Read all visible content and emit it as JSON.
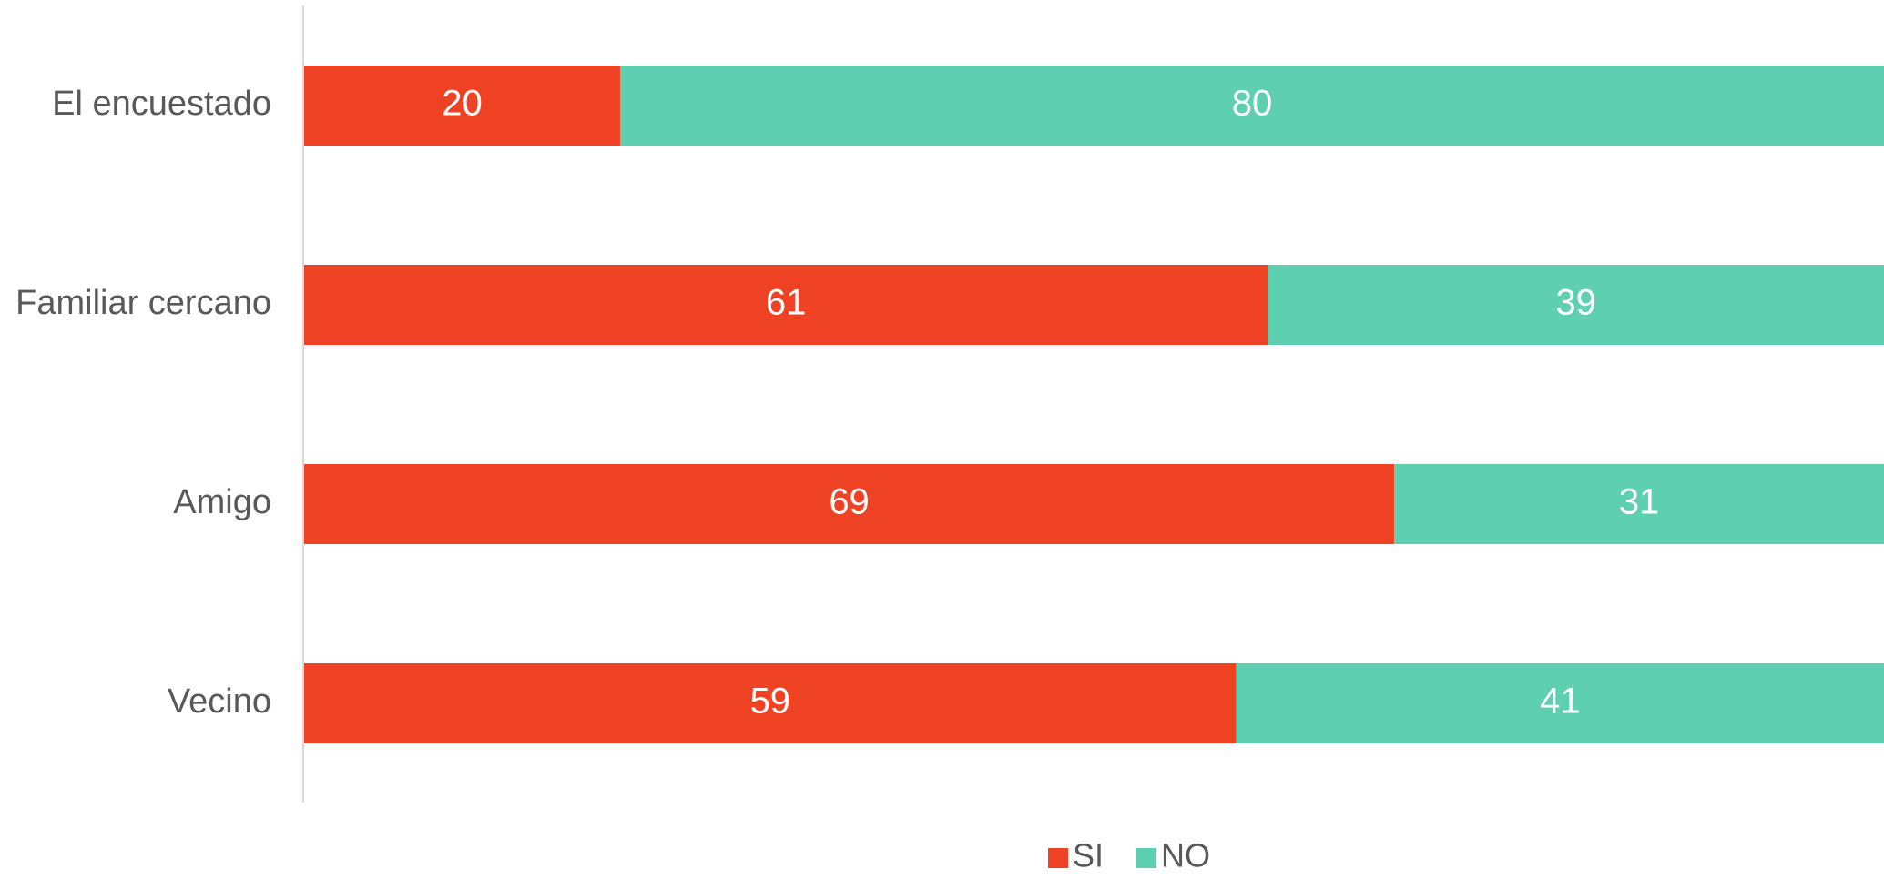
{
  "chart_data": {
    "type": "bar",
    "orientation": "horizontal",
    "stacked": true,
    "categories": [
      "El encuestado",
      "Familiar cercano",
      "Amigo",
      "Vecino"
    ],
    "series": [
      {
        "name": "SI",
        "color": "#EF4123",
        "values": [
          20,
          61,
          69,
          59
        ]
      },
      {
        "name": "NO",
        "color": "#5ECFB1",
        "values": [
          80,
          39,
          31,
          41
        ]
      }
    ],
    "xlim": [
      0,
      100
    ],
    "data_labels": true,
    "grid": false,
    "legend_position": "bottom"
  }
}
